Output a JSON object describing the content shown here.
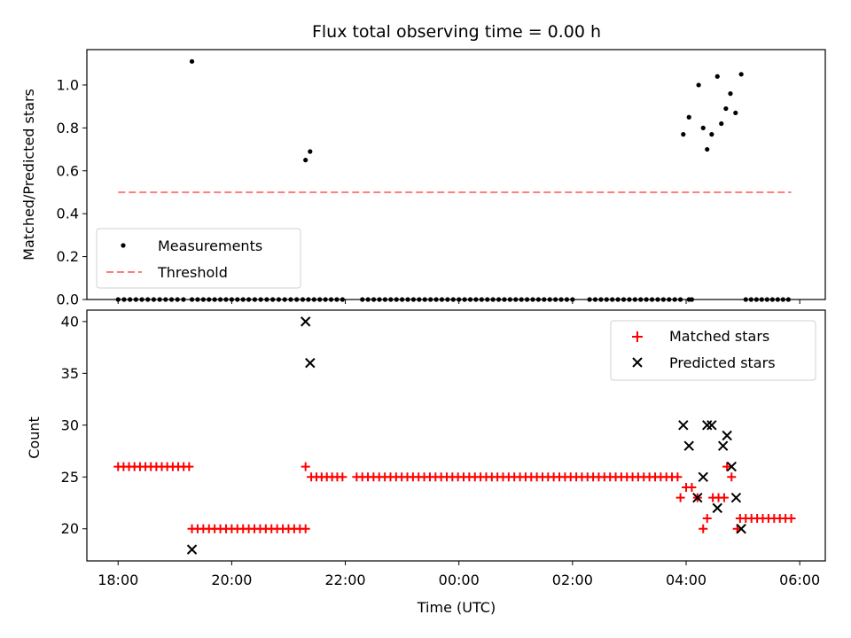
{
  "chart_data": [
    {
      "type": "scatter",
      "title": "Flux total observing time = 0.00 h",
      "xlabel": "",
      "ylabel": "Matched/Predicted stars",
      "xlim": [
        17.45,
        30.45
      ],
      "ylim": [
        0.0,
        1.165
      ],
      "yticks": [
        0.0,
        0.2,
        0.4,
        0.6,
        0.8,
        1.0
      ],
      "ytick_labels": [
        "0.0",
        "0.2",
        "0.4",
        "0.6",
        "0.8",
        "1.0"
      ],
      "grid": false,
      "legend_position": "lower-left",
      "series": [
        {
          "name": "Measurements",
          "marker": "dot",
          "color": "#000000",
          "zero_runs": [
            [
              18.0,
              19.15
            ],
            [
              19.3,
              20.2
            ],
            [
              20.3,
              21.25
            ],
            [
              21.35,
              21.95
            ],
            [
              22.3,
              26.0
            ],
            [
              26.3,
              27.9
            ],
            [
              28.05,
              28.1
            ],
            [
              29.05,
              29.8
            ]
          ],
          "points": [
            [
              19.3,
              1.11
            ],
            [
              21.3,
              0.65
            ],
            [
              21.38,
              0.69
            ],
            [
              27.95,
              0.77
            ],
            [
              28.05,
              0.85
            ],
            [
              28.22,
              1.0
            ],
            [
              28.3,
              0.8
            ],
            [
              28.37,
              0.7
            ],
            [
              28.45,
              0.77
            ],
            [
              28.55,
              1.04
            ],
            [
              28.62,
              0.82
            ],
            [
              28.7,
              0.89
            ],
            [
              28.78,
              0.96
            ],
            [
              28.87,
              0.87
            ],
            [
              28.97,
              1.05
            ]
          ]
        },
        {
          "name": "Threshold",
          "style": "dashed",
          "color": "#ff7f7f",
          "x": [
            18.0,
            29.85
          ],
          "y": [
            0.5,
            0.5
          ]
        }
      ]
    },
    {
      "type": "scatter",
      "title": "",
      "xlabel": "Time (UTC)",
      "ylabel": "Count",
      "xlim": [
        17.45,
        30.45
      ],
      "ylim": [
        16.9,
        41.1
      ],
      "yticks": [
        20,
        25,
        30,
        35,
        40
      ],
      "ytick_labels": [
        "20",
        "25",
        "30",
        "35",
        "40"
      ],
      "xticks": [
        18,
        20,
        22,
        24,
        26,
        28,
        30
      ],
      "xtick_labels": [
        "18:00",
        "20:00",
        "22:00",
        "00:00",
        "02:00",
        "04:00",
        "06:00"
      ],
      "grid": false,
      "legend_position": "upper-right",
      "series": [
        {
          "name": "Matched stars",
          "marker": "plus",
          "color": "#ff0000",
          "runs": [
            [
              18.0,
              19.25,
              26
            ],
            [
              19.3,
              20.2,
              20
            ],
            [
              20.3,
              21.3,
              20
            ],
            [
              21.4,
              21.95,
              25
            ],
            [
              22.2,
              27.85,
              25
            ],
            [
              28.95,
              29.85,
              21
            ]
          ],
          "points": [
            [
              21.3,
              26
            ],
            [
              27.9,
              23
            ],
            [
              28.0,
              24
            ],
            [
              28.1,
              24
            ],
            [
              28.2,
              23
            ],
            [
              28.3,
              20
            ],
            [
              28.37,
              21
            ],
            [
              28.47,
              23
            ],
            [
              28.57,
              23
            ],
            [
              28.67,
              23
            ],
            [
              28.72,
              26
            ],
            [
              28.8,
              25
            ],
            [
              28.9,
              20
            ]
          ]
        },
        {
          "name": "Predicted stars",
          "marker": "x",
          "color": "#000000",
          "points": [
            [
              19.3,
              18
            ],
            [
              21.3,
              40
            ],
            [
              21.38,
              36
            ],
            [
              27.95,
              30
            ],
            [
              28.05,
              28
            ],
            [
              28.2,
              23
            ],
            [
              28.3,
              25
            ],
            [
              28.37,
              30
            ],
            [
              28.45,
              30
            ],
            [
              28.55,
              22
            ],
            [
              28.65,
              28
            ],
            [
              28.72,
              29
            ],
            [
              28.8,
              26
            ],
            [
              28.88,
              23
            ],
            [
              28.97,
              20
            ]
          ]
        }
      ]
    }
  ]
}
